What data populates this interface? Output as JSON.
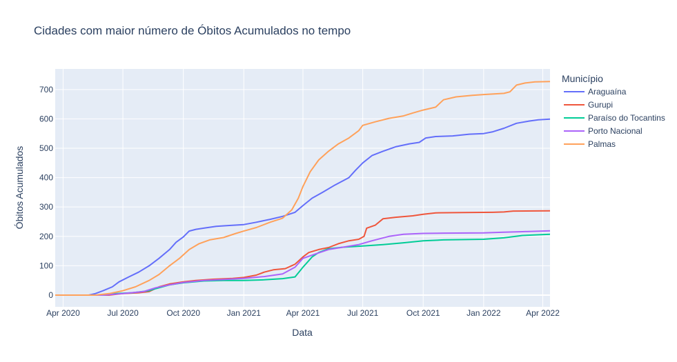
{
  "chart_data": {
    "type": "line",
    "title": "Cidades com maior número de Óbitos Acumulados no tempo",
    "xlabel": "Data",
    "ylabel": "Óbitos Acumulados",
    "legend_title": "Município",
    "legend_position": "right",
    "grid": true,
    "xlim": [
      "2020-03-20",
      "2022-04-12"
    ],
    "ylim": [
      -40,
      770
    ],
    "x_ticks": [
      {
        "date": "2020-04-01",
        "label": "Apr 2020"
      },
      {
        "date": "2020-07-01",
        "label": "Jul 2020"
      },
      {
        "date": "2020-10-01",
        "label": "Oct 2020"
      },
      {
        "date": "2021-01-01",
        "label": "Jan 2021"
      },
      {
        "date": "2021-04-01",
        "label": "Apr 2021"
      },
      {
        "date": "2021-07-01",
        "label": "Jul 2021"
      },
      {
        "date": "2021-10-01",
        "label": "Oct 2021"
      },
      {
        "date": "2022-01-01",
        "label": "Jan 2022"
      },
      {
        "date": "2022-04-01",
        "label": "Apr 2022"
      }
    ],
    "y_ticks": [
      0,
      100,
      200,
      300,
      400,
      500,
      600,
      700
    ],
    "series": [
      {
        "name": "Araguaína",
        "color": "#636efa",
        "points": [
          [
            "2020-03-20",
            0
          ],
          [
            "2020-05-10",
            0
          ],
          [
            "2020-05-20",
            5
          ],
          [
            "2020-06-01",
            15
          ],
          [
            "2020-06-15",
            28
          ],
          [
            "2020-06-25",
            45
          ],
          [
            "2020-07-10",
            62
          ],
          [
            "2020-07-25",
            78
          ],
          [
            "2020-08-10",
            100
          ],
          [
            "2020-08-25",
            125
          ],
          [
            "2020-09-10",
            155
          ],
          [
            "2020-09-20",
            180
          ],
          [
            "2020-10-01",
            198
          ],
          [
            "2020-10-10",
            218
          ],
          [
            "2020-10-20",
            224
          ],
          [
            "2020-11-01",
            228
          ],
          [
            "2020-11-20",
            234
          ],
          [
            "2020-12-10",
            237
          ],
          [
            "2021-01-01",
            240
          ],
          [
            "2021-01-20",
            248
          ],
          [
            "2021-02-10",
            258
          ],
          [
            "2021-03-01",
            268
          ],
          [
            "2021-03-20",
            282
          ],
          [
            "2021-04-01",
            305
          ],
          [
            "2021-04-15",
            330
          ],
          [
            "2021-05-01",
            350
          ],
          [
            "2021-05-20",
            375
          ],
          [
            "2021-06-10",
            400
          ],
          [
            "2021-06-20",
            425
          ],
          [
            "2021-07-01",
            450
          ],
          [
            "2021-07-15",
            475
          ],
          [
            "2021-08-01",
            490
          ],
          [
            "2021-08-20",
            505
          ],
          [
            "2021-09-10",
            515
          ],
          [
            "2021-09-25",
            520
          ],
          [
            "2021-10-05",
            535
          ],
          [
            "2021-10-20",
            540
          ],
          [
            "2021-11-15",
            542
          ],
          [
            "2021-12-10",
            548
          ],
          [
            "2022-01-01",
            550
          ],
          [
            "2022-01-15",
            556
          ],
          [
            "2022-02-01",
            568
          ],
          [
            "2022-02-20",
            585
          ],
          [
            "2022-03-10",
            592
          ],
          [
            "2022-03-25",
            597
          ],
          [
            "2022-04-12",
            599
          ]
        ]
      },
      {
        "name": "Gurupi",
        "color": "#ef553b",
        "points": [
          [
            "2020-03-20",
            0
          ],
          [
            "2020-06-10",
            0
          ],
          [
            "2020-07-01",
            5
          ],
          [
            "2020-07-25",
            8
          ],
          [
            "2020-08-10",
            12
          ],
          [
            "2020-08-25",
            28
          ],
          [
            "2020-09-10",
            38
          ],
          [
            "2020-10-01",
            45
          ],
          [
            "2020-10-20",
            50
          ],
          [
            "2020-11-15",
            54
          ],
          [
            "2020-12-15",
            57
          ],
          [
            "2021-01-01",
            60
          ],
          [
            "2021-01-20",
            68
          ],
          [
            "2021-02-01",
            78
          ],
          [
            "2021-02-15",
            86
          ],
          [
            "2021-03-05",
            90
          ],
          [
            "2021-03-20",
            105
          ],
          [
            "2021-04-01",
            130
          ],
          [
            "2021-04-10",
            145
          ],
          [
            "2021-04-25",
            155
          ],
          [
            "2021-05-10",
            162
          ],
          [
            "2021-05-25",
            175
          ],
          [
            "2021-06-10",
            185
          ],
          [
            "2021-06-25",
            190
          ],
          [
            "2021-07-03",
            200
          ],
          [
            "2021-07-07",
            228
          ],
          [
            "2021-07-20",
            238
          ],
          [
            "2021-08-01",
            260
          ],
          [
            "2021-08-20",
            265
          ],
          [
            "2021-09-15",
            270
          ],
          [
            "2021-10-01",
            275
          ],
          [
            "2021-10-20",
            280
          ],
          [
            "2021-12-01",
            281
          ],
          [
            "2022-01-15",
            282
          ],
          [
            "2022-02-01",
            283
          ],
          [
            "2022-02-15",
            286
          ],
          [
            "2022-04-12",
            287
          ]
        ]
      },
      {
        "name": "Paraíso do Tocantins",
        "color": "#00cc96",
        "points": [
          [
            "2020-03-20",
            0
          ],
          [
            "2020-06-01",
            0
          ],
          [
            "2020-06-20",
            5
          ],
          [
            "2020-07-15",
            8
          ],
          [
            "2020-08-10",
            15
          ],
          [
            "2020-08-20",
            22
          ],
          [
            "2020-09-10",
            35
          ],
          [
            "2020-10-01",
            42
          ],
          [
            "2020-11-01",
            48
          ],
          [
            "2020-12-01",
            50
          ],
          [
            "2021-01-01",
            50
          ],
          [
            "2021-02-01",
            52
          ],
          [
            "2021-03-01",
            56
          ],
          [
            "2021-03-20",
            62
          ],
          [
            "2021-04-01",
            95
          ],
          [
            "2021-04-15",
            130
          ],
          [
            "2021-04-25",
            145
          ],
          [
            "2021-05-10",
            158
          ],
          [
            "2021-06-01",
            163
          ],
          [
            "2021-07-01",
            167
          ],
          [
            "2021-08-01",
            172
          ],
          [
            "2021-09-01",
            178
          ],
          [
            "2021-10-01",
            185
          ],
          [
            "2021-11-01",
            188
          ],
          [
            "2022-01-01",
            190
          ],
          [
            "2022-02-01",
            195
          ],
          [
            "2022-03-01",
            203
          ],
          [
            "2022-04-12",
            207
          ]
        ]
      },
      {
        "name": "Porto Nacional",
        "color": "#ab63fa",
        "points": [
          [
            "2020-03-20",
            0
          ],
          [
            "2020-06-01",
            0
          ],
          [
            "2020-07-01",
            5
          ],
          [
            "2020-08-01",
            12
          ],
          [
            "2020-08-20",
            25
          ],
          [
            "2020-09-10",
            35
          ],
          [
            "2020-10-01",
            43
          ],
          [
            "2020-11-01",
            50
          ],
          [
            "2020-12-01",
            53
          ],
          [
            "2021-01-01",
            57
          ],
          [
            "2021-02-01",
            63
          ],
          [
            "2021-03-01",
            72
          ],
          [
            "2021-03-20",
            95
          ],
          [
            "2021-04-01",
            125
          ],
          [
            "2021-04-20",
            140
          ],
          [
            "2021-05-10",
            155
          ],
          [
            "2021-06-01",
            163
          ],
          [
            "2021-06-25",
            172
          ],
          [
            "2021-07-15",
            185
          ],
          [
            "2021-08-10",
            200
          ],
          [
            "2021-09-01",
            207
          ],
          [
            "2021-10-01",
            210
          ],
          [
            "2021-11-01",
            211
          ],
          [
            "2022-01-01",
            212
          ],
          [
            "2022-02-01",
            214
          ],
          [
            "2022-03-01",
            216
          ],
          [
            "2022-04-12",
            219
          ]
        ]
      },
      {
        "name": "Palmas",
        "color": "#ffa15a",
        "points": [
          [
            "2020-03-20",
            0
          ],
          [
            "2020-05-20",
            0
          ],
          [
            "2020-06-10",
            5
          ],
          [
            "2020-07-01",
            15
          ],
          [
            "2020-07-20",
            28
          ],
          [
            "2020-08-10",
            50
          ],
          [
            "2020-08-25",
            70
          ],
          [
            "2020-09-10",
            100
          ],
          [
            "2020-09-25",
            125
          ],
          [
            "2020-10-10",
            155
          ],
          [
            "2020-10-25",
            175
          ],
          [
            "2020-11-10",
            188
          ],
          [
            "2020-12-01",
            196
          ],
          [
            "2020-12-20",
            210
          ],
          [
            "2021-01-01",
            218
          ],
          [
            "2021-01-20",
            230
          ],
          [
            "2021-02-10",
            248
          ],
          [
            "2021-03-01",
            262
          ],
          [
            "2021-03-15",
            290
          ],
          [
            "2021-03-25",
            330
          ],
          [
            "2021-04-01",
            370
          ],
          [
            "2021-04-12",
            420
          ],
          [
            "2021-04-25",
            460
          ],
          [
            "2021-05-10",
            490
          ],
          [
            "2021-05-25",
            515
          ],
          [
            "2021-06-10",
            535
          ],
          [
            "2021-06-25",
            560
          ],
          [
            "2021-07-01",
            578
          ],
          [
            "2021-07-20",
            590
          ],
          [
            "2021-08-10",
            602
          ],
          [
            "2021-09-01",
            610
          ],
          [
            "2021-09-15",
            620
          ],
          [
            "2021-10-01",
            630
          ],
          [
            "2021-10-20",
            640
          ],
          [
            "2021-11-01",
            665
          ],
          [
            "2021-11-20",
            675
          ],
          [
            "2021-12-15",
            680
          ],
          [
            "2022-01-01",
            683
          ],
          [
            "2022-02-01",
            687
          ],
          [
            "2022-02-10",
            692
          ],
          [
            "2022-02-20",
            715
          ],
          [
            "2022-03-05",
            722
          ],
          [
            "2022-03-20",
            726
          ],
          [
            "2022-04-12",
            727
          ]
        ]
      }
    ]
  }
}
